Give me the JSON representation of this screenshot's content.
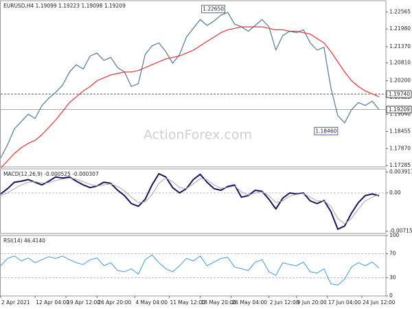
{
  "chart_data": [
    {
      "type": "line",
      "title": "EURUSD,H4  1.19099 1.19223 1.19098 1.19209",
      "watermark": "ActionForex.com",
      "x": [
        0,
        1,
        2,
        3,
        4,
        5,
        6,
        7,
        8,
        9,
        10,
        11,
        12,
        13,
        14,
        15,
        16,
        17,
        18,
        19,
        20,
        21,
        22,
        23,
        24,
        25,
        26,
        27,
        28,
        29,
        30,
        31,
        32,
        33,
        34,
        35,
        36,
        37,
        38,
        39,
        40,
        41,
        42,
        43,
        44,
        45,
        46,
        47,
        48,
        49,
        50,
        51,
        52,
        53,
        54,
        55
      ],
      "series": [
        {
          "name": "EURUSD",
          "color": "#4a7a96",
          "values": [
            1.1755,
            1.18,
            1.1855,
            1.188,
            1.1905,
            1.189,
            1.1935,
            1.196,
            1.198,
            1.2005,
            1.205,
            1.2075,
            1.206,
            1.2105,
            1.2115,
            1.209,
            1.21,
            1.2065,
            1.205,
            1.2,
            1.201,
            1.211,
            1.214,
            1.215,
            1.212,
            1.208,
            1.211,
            1.217,
            1.22,
            1.223,
            1.221,
            1.2225,
            1.2245,
            1.2255,
            1.2215,
            1.2205,
            1.219,
            1.221,
            1.223,
            1.2205,
            1.2125,
            1.2175,
            1.219,
            1.2185,
            1.2195,
            1.215,
            1.2125,
            1.2135,
            1.1995,
            1.19,
            1.1875,
            1.192,
            1.1945,
            1.1935,
            1.195,
            1.1921
          ]
        },
        {
          "name": "MA",
          "color": "#e8312f",
          "values": [
            1.172,
            1.1745,
            1.177,
            1.179,
            1.1805,
            1.1815,
            1.1835,
            1.186,
            1.1885,
            1.1915,
            1.1945,
            1.1965,
            1.1985,
            1.2,
            1.202,
            1.203,
            1.204,
            1.2045,
            1.205,
            1.205,
            1.2055,
            1.2065,
            1.2075,
            1.2085,
            1.2095,
            1.21,
            1.2105,
            1.2115,
            1.2125,
            1.214,
            1.2155,
            1.217,
            1.2185,
            1.2195,
            1.22,
            1.2205,
            1.2205,
            1.2205,
            1.2205,
            1.22,
            1.2195,
            1.2195,
            1.219,
            1.219,
            1.2185,
            1.218,
            1.2165,
            1.215,
            1.212,
            1.2085,
            1.205,
            1.202,
            1.2,
            1.1985,
            1.1975,
            1.1965
          ]
        }
      ],
      "xlim": [
        0,
        56
      ],
      "ylim": [
        1.1724,
        1.2295
      ],
      "yticks": [
        1.22565,
        {
          "value": 1.2198,
          "label": "1.21980"
        },
        {
          "value": 1.2137,
          "label": "1.21370"
        },
        {
          "value": 1.2081,
          "label": "1.20810"
        },
        {
          "value": 1.202,
          "label": "1.20200"
        },
        1.19625,
        {
          "value": 1.1904,
          "label": "1.19040"
        },
        1.18455,
        {
          "value": 1.1787,
          "label": "1.17870"
        },
        1.17285
      ],
      "levels": [
        {
          "value": 1.1974,
          "label": "1.19740",
          "style": "dashed"
        },
        {
          "value": 1.19209,
          "label": "1.19209",
          "style": "solid"
        }
      ],
      "annotations": [
        {
          "label": "1.22650",
          "value": 1.2265,
          "x": 32.8
        },
        {
          "label": "1.18460",
          "value": 1.1846,
          "x": 49.2
        }
      ]
    },
    {
      "type": "line",
      "title": "MACD(12,26,9) -0.000525 -0.000307",
      "x": [
        0,
        1,
        2,
        3,
        4,
        5,
        6,
        7,
        8,
        9,
        10,
        11,
        12,
        13,
        14,
        15,
        16,
        17,
        18,
        19,
        20,
        21,
        22,
        23,
        24,
        25,
        26,
        27,
        28,
        29,
        30,
        31,
        32,
        33,
        34,
        35,
        36,
        37,
        38,
        39,
        40,
        41,
        42,
        43,
        44,
        45,
        46,
        47,
        48,
        49,
        50,
        51,
        52,
        53,
        54,
        55
      ],
      "series": [
        {
          "name": "MACD",
          "color": "#14145e",
          "width": 2,
          "values": [
            -0.0002,
            0.0008,
            0.002,
            0.0022,
            0.0025,
            0.002,
            0.0015,
            0.0022,
            0.003,
            0.0028,
            0.003,
            0.0022,
            0.0015,
            0.001,
            0.0013,
            0.002,
            0.0018,
            0.0005,
            -0.0005,
            -0.002,
            -0.0025,
            -0.0012,
            0.0015,
            0.0036,
            0.003,
            0.001,
            0,
            0.0008,
            0.0025,
            0.0035,
            0.002,
            0.0008,
            0.0005,
            0.0012,
            0.0015,
            -0.0008,
            -0.0005,
            0.0005,
            0.0003,
            -0.0012,
            -0.003,
            -0.001,
            0,
            -0.0002,
            0,
            -0.0015,
            -0.002,
            -0.0014,
            -0.0035,
            -0.0068,
            -0.0062,
            -0.0038,
            -0.0018,
            -0.0005,
            -0.0002,
            -0.000525
          ]
        },
        {
          "name": "Signal",
          "color": "#a8a8a8",
          "width": 1,
          "values": [
            -0.0005,
            0,
            0.0008,
            0.0015,
            0.002,
            0.0021,
            0.0019,
            0.0019,
            0.0023,
            0.0026,
            0.0028,
            0.0026,
            0.0021,
            0.0016,
            0.0013,
            0.0015,
            0.0017,
            0.0012,
            0.0004,
            -0.0008,
            -0.0018,
            -0.0017,
            -0.0003,
            0.0018,
            0.0028,
            0.0021,
            0.001,
            0.0008,
            0.0017,
            0.0027,
            0.0025,
            0.0015,
            0.0009,
            0.001,
            0.0013,
            0.0002,
            -0.0004,
            0,
            0.0002,
            -0.0005,
            -0.0018,
            -0.0015,
            -0.0006,
            -0.0003,
            -0.0001,
            -0.0008,
            -0.0015,
            -0.0015,
            -0.0025,
            -0.0048,
            -0.0058,
            -0.0048,
            -0.003,
            -0.0015,
            -0.0008,
            -0.000307
          ]
        }
      ],
      "xlim": [
        0,
        56
      ],
      "ylim": [
        -0.0076,
        0.0045
      ],
      "yticks": [
        0.003917,
        {
          "value": 0,
          "label": "0.00"
        },
        -0.007152
      ],
      "levels": [
        0
      ]
    },
    {
      "type": "line",
      "title": "RSI(14) 46.4140",
      "x": [
        0,
        1,
        2,
        3,
        4,
        5,
        6,
        7,
        8,
        9,
        10,
        11,
        12,
        13,
        14,
        15,
        16,
        17,
        18,
        19,
        20,
        21,
        22,
        23,
        24,
        25,
        26,
        27,
        28,
        29,
        30,
        31,
        32,
        33,
        34,
        35,
        36,
        37,
        38,
        39,
        40,
        41,
        42,
        43,
        44,
        45,
        46,
        47,
        48,
        49,
        50,
        51,
        52,
        53,
        54,
        55
      ],
      "series": [
        {
          "name": "RSI",
          "color": "#3d9be0",
          "width": 1,
          "values": [
            50,
            62,
            66,
            58,
            63,
            55,
            60,
            65,
            62,
            66,
            60,
            55,
            52,
            60,
            63,
            50,
            55,
            42,
            40,
            45,
            36,
            60,
            68,
            55,
            45,
            40,
            50,
            62,
            58,
            66,
            50,
            56,
            62,
            64,
            48,
            45,
            42,
            56,
            60,
            40,
            34,
            55,
            52,
            50,
            56,
            40,
            38,
            45,
            20,
            18,
            28,
            48,
            55,
            50,
            56,
            46.414
          ]
        }
      ],
      "xlim": [
        0,
        56
      ],
      "ylim": [
        0,
        100
      ],
      "yticks": [
        100,
        70,
        30,
        0
      ],
      "levels": [
        70,
        30
      ],
      "xticks": [
        {
          "value": 0,
          "label": "2 Apr 2021"
        },
        {
          "value": 5,
          "label": "12 Apr 04:00"
        },
        {
          "value": 9.5,
          "label": "19 Apr 12:00"
        },
        {
          "value": 14,
          "label": "26 Apr 20:00"
        },
        {
          "value": 19.5,
          "label": "4 May 04:00"
        },
        {
          "value": 24.5,
          "label": "11 May 12:00"
        },
        {
          "value": 29,
          "label": "18 May 20:00"
        },
        {
          "value": 33.5,
          "label": "26 May 04:00"
        },
        {
          "value": 39,
          "label": "2 Jun 12:00"
        },
        {
          "value": 43,
          "label": "9 Jun 20:00"
        },
        {
          "value": 47.5,
          "label": "17 Jun 04:00"
        },
        {
          "value": 52.5,
          "label": "24 Jun 12:00"
        }
      ]
    }
  ]
}
